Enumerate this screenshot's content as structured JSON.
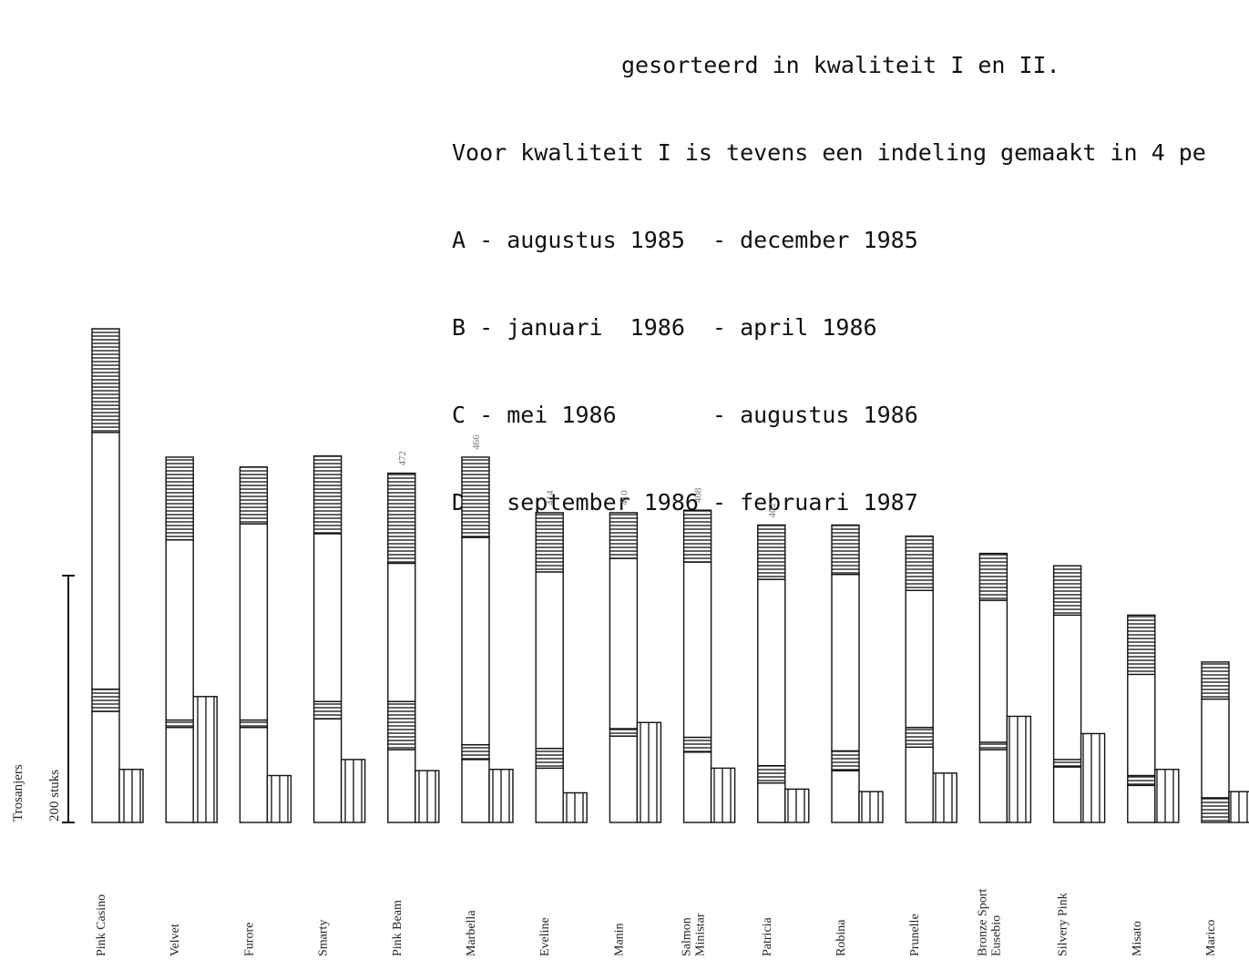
{
  "legend": {
    "heading": "gesorteerd in kwaliteit I en II.",
    "intro": "Voor kwaliteit I is tevens een indeling gemaakt in 4 pe",
    "periods": [
      "A - augustus 1985  - december 1985",
      "B - januari  1986  - april 1986",
      "C - mei 1986       - augustus 1986",
      "D - september 1986 - februari 1987"
    ]
  },
  "chart_data": {
    "type": "bar",
    "ylabel": "Trosanjers",
    "scale_label": "200 stuks",
    "scale_value": 200,
    "categories": [
      "Pink Casino",
      "Velvet",
      "Furore",
      "Smarty",
      "Pink Beam",
      "Marbella",
      "Eveline",
      "Manin",
      "Salmon Ministar",
      "Patricia",
      "Robina",
      "Prunelle",
      "Bronze Sport Eusebio",
      "Silvery Pink",
      "Misato",
      "Marico"
    ],
    "totals": [
      "",
      "",
      "",
      "",
      "472",
      "466",
      "414",
      "410",
      "408",
      "402",
      "",
      "",
      "",
      "",
      "",
      ""
    ],
    "series": [
      {
        "name": "A",
        "values": [
          90,
          77,
          77,
          84,
          59,
          51,
          44,
          70,
          57,
          32,
          42,
          61,
          59,
          45,
          30,
          0
        ]
      },
      {
        "name": "B",
        "values": [
          18,
          6,
          6,
          14,
          39,
          12,
          16,
          6,
          12,
          14,
          16,
          16,
          6,
          6,
          8,
          20
        ]
      },
      {
        "name": "C",
        "values": [
          208,
          146,
          159,
          136,
          112,
          168,
          143,
          138,
          142,
          151,
          143,
          111,
          115,
          117,
          82,
          80
        ]
      },
      {
        "name": "D",
        "values": [
          84,
          67,
          46,
          63,
          73,
          65,
          48,
          37,
          42,
          44,
          40,
          44,
          38,
          40,
          48,
          30
        ]
      },
      {
        "name": "II",
        "values": [
          43,
          102,
          38,
          51,
          42,
          43,
          24,
          81,
          44,
          27,
          25,
          40,
          86,
          72,
          43,
          25
        ]
      }
    ]
  }
}
